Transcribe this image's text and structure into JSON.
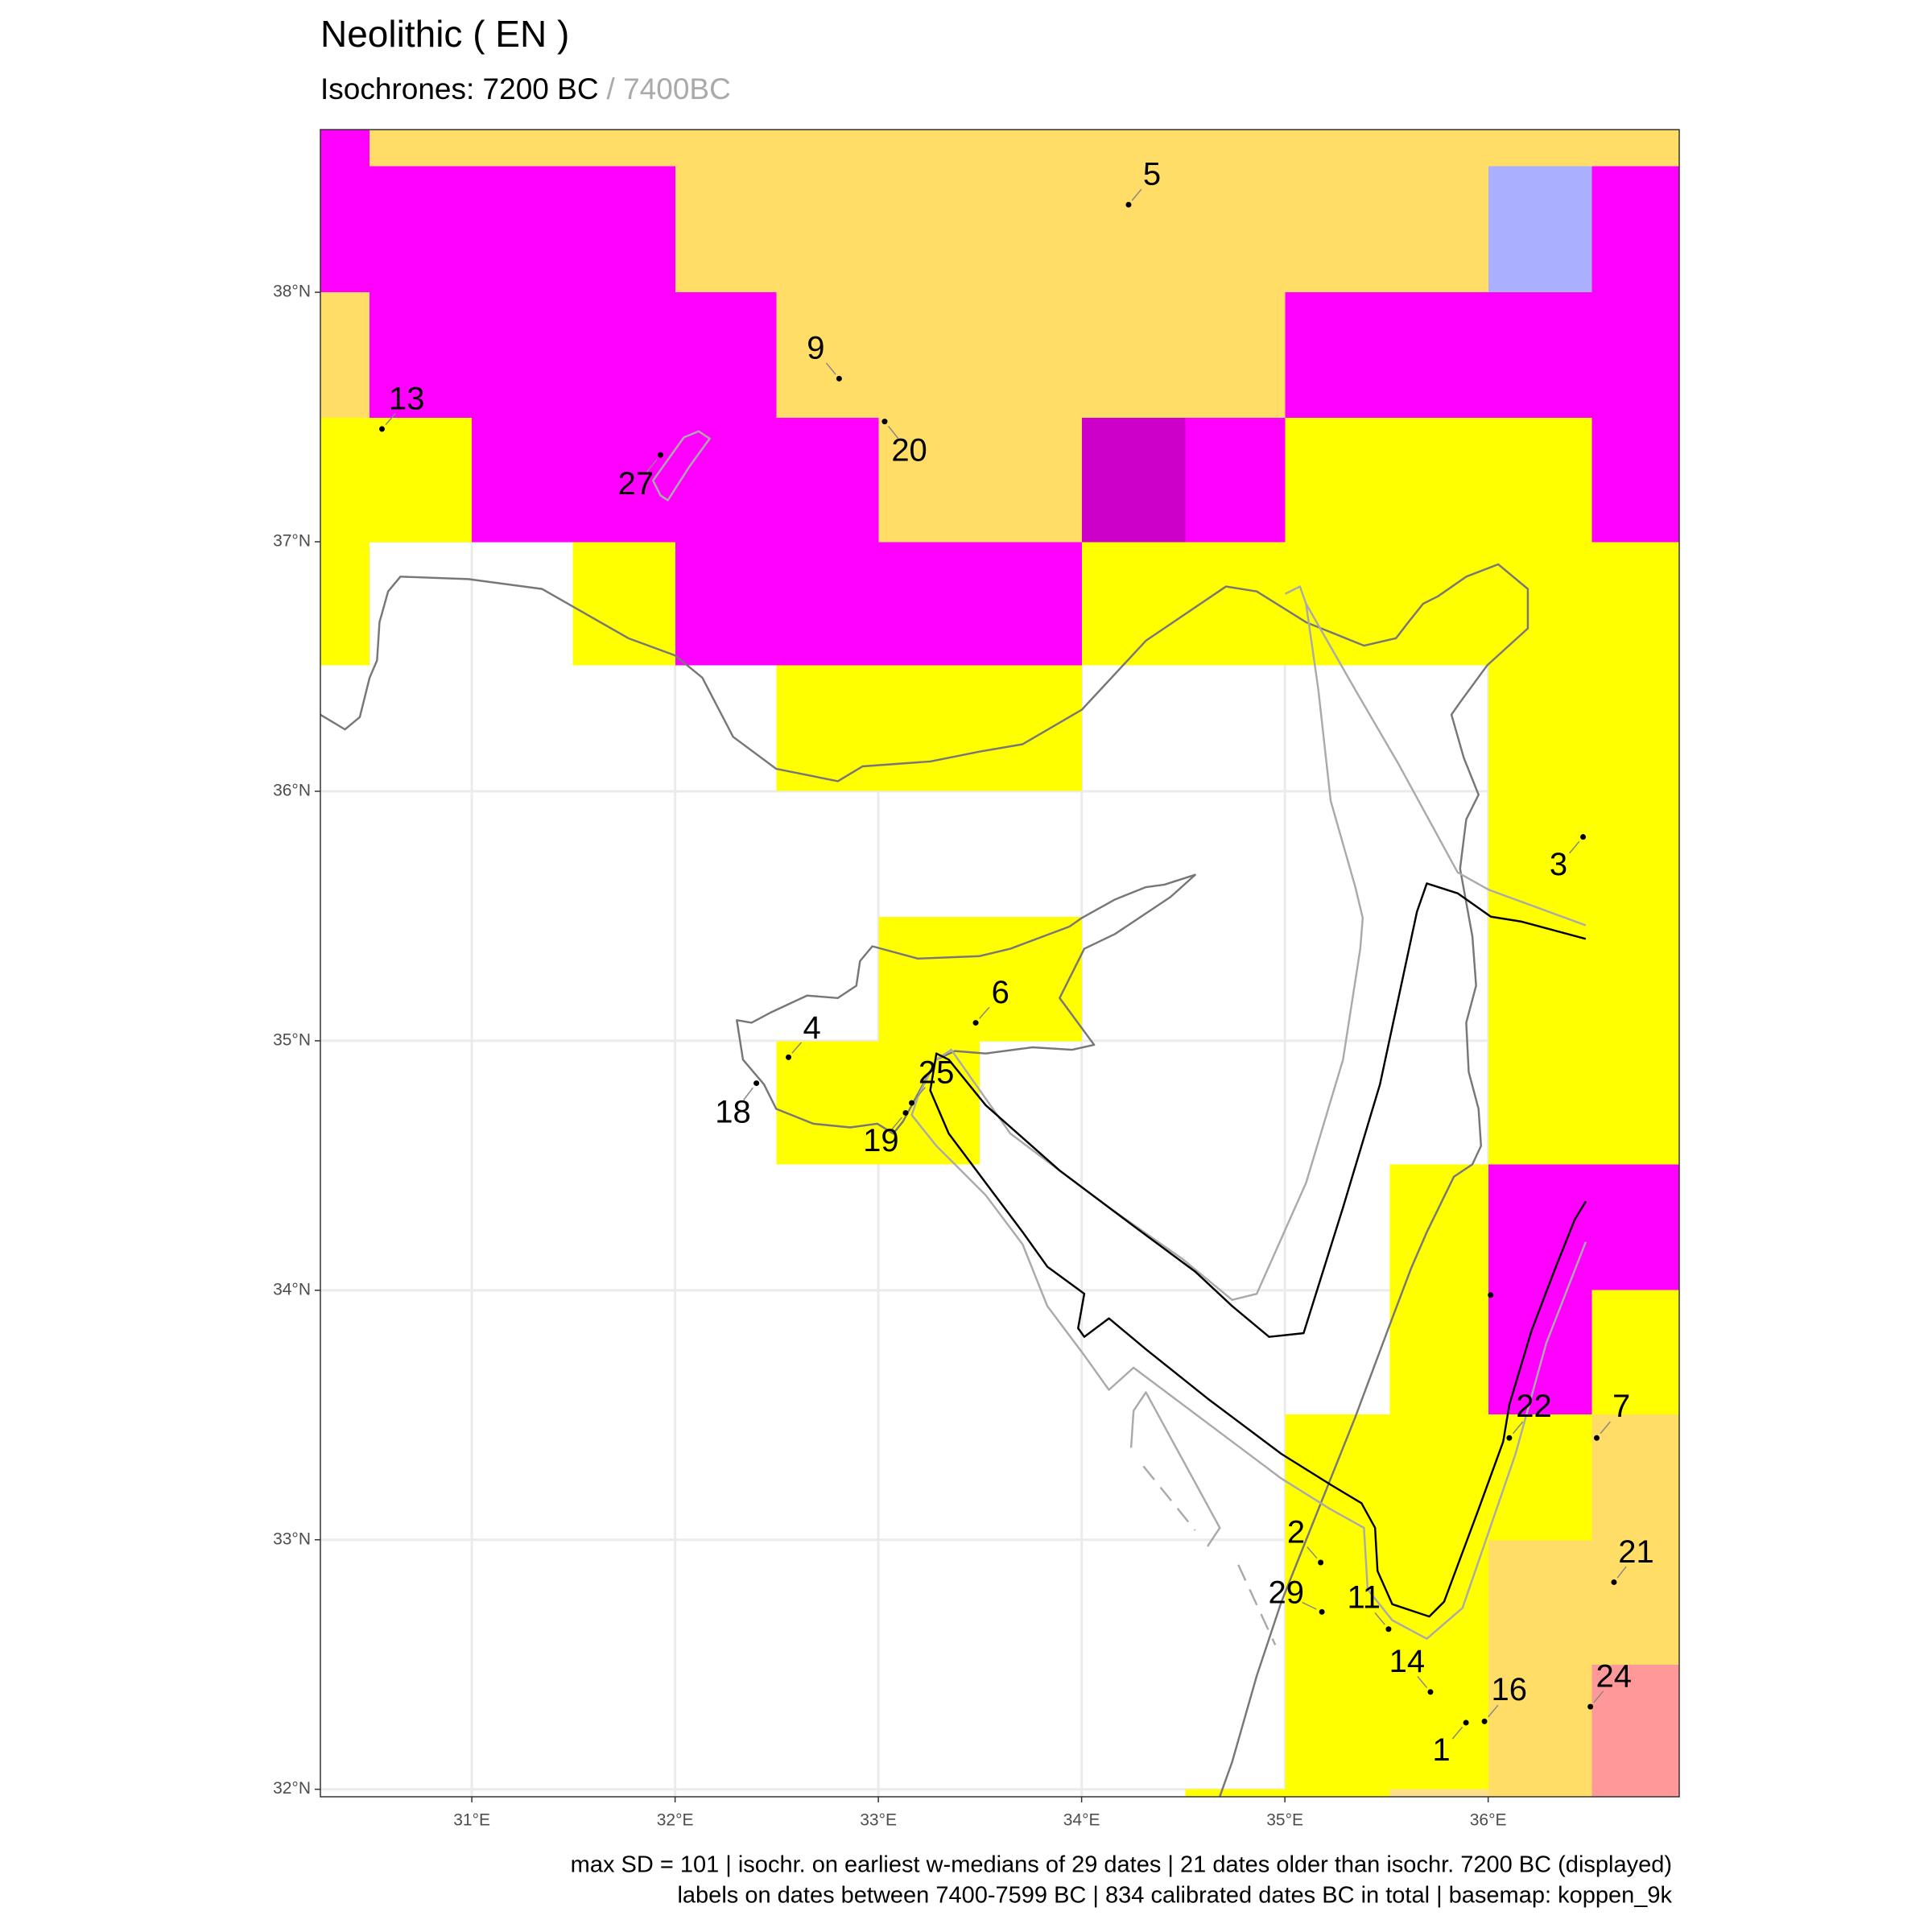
{
  "chart_data": {
    "type": "map",
    "title": "Neolithic ( EN )",
    "subtitle": "Isochrones: 7200 BC",
    "subtitle_secondary": "/ 7400BC",
    "xlim": [
      30.255,
      36.94
    ],
    "ylim": [
      31.97,
      38.652
    ],
    "xticks": [
      {
        "value": 31,
        "label": "31°E"
      },
      {
        "value": 32,
        "label": "32°E"
      },
      {
        "value": 33,
        "label": "33°E"
      },
      {
        "value": 34,
        "label": "34°E"
      },
      {
        "value": 35,
        "label": "35°E"
      },
      {
        "value": 36,
        "label": "36°E"
      }
    ],
    "yticks": [
      {
        "value": 32,
        "label": "32°N"
      },
      {
        "value": 33,
        "label": "33°N"
      },
      {
        "value": 34,
        "label": "34°N"
      },
      {
        "value": 35,
        "label": "35°N"
      },
      {
        "value": 36,
        "label": "36°N"
      },
      {
        "value": 37,
        "label": "37°N"
      },
      {
        "value": 38,
        "label": "38°N"
      }
    ],
    "grid": true,
    "points": {
      "labels": [
        "5",
        "9",
        "20",
        "13",
        "27",
        "3",
        "6",
        "4",
        "18",
        "25",
        "19",
        "22",
        "7",
        "2",
        "29",
        "11",
        "21",
        "14",
        "16",
        "1",
        "24",
        null
      ],
      "x": [
        34.231,
        32.807,
        33.031,
        30.558,
        31.928,
        36.467,
        33.479,
        32.558,
        32.4,
        33.164,
        33.134,
        36.104,
        36.534,
        35.176,
        35.182,
        35.51,
        36.619,
        35.716,
        35.982,
        35.891,
        36.503,
        36.012
      ],
      "y": [
        38.351,
        37.654,
        37.482,
        37.452,
        37.348,
        35.817,
        35.072,
        34.934,
        34.83,
        34.751,
        34.711,
        33.408,
        33.408,
        32.909,
        32.711,
        32.642,
        32.83,
        32.39,
        32.272,
        32.267,
        32.331,
        33.981
      ]
    },
    "caption": [
      "max SD = 101 | isochr. on earliest w-medians of 29 dates |  21 dates older than isochr. 7200 BC (displayed)",
      "labels on dates between 7400-7599 BC | 834 calibrated dates BC in total | basemap: koppen_9k"
    ]
  }
}
